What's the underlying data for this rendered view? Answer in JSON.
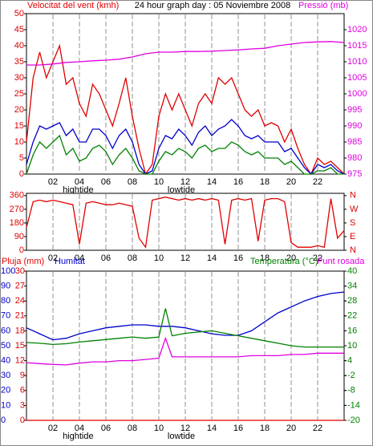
{
  "chart_data": [
    {
      "type": "line",
      "title": "24 hour graph day : 05 Noviembre 2008",
      "x": [
        0,
        0.5,
        1,
        1.5,
        2,
        2.5,
        3,
        3.5,
        4,
        4.5,
        5,
        5.5,
        6,
        6.5,
        7,
        7.5,
        8,
        8.5,
        9,
        9.5,
        10,
        10.5,
        11,
        11.5,
        12,
        12.5,
        13,
        13.5,
        14,
        14.5,
        15,
        15.5,
        16,
        16.5,
        17,
        17.5,
        18,
        18.5,
        19,
        19.5,
        20,
        20.5,
        21,
        21.5,
        22,
        22.5,
        23,
        23.5,
        24
      ],
      "series": [
        {
          "name": "Velocitat del vent (kmh)",
          "color": "#e00000",
          "values": [
            10,
            30,
            38,
            30,
            35,
            40,
            28,
            30,
            22,
            18,
            28,
            25,
            20,
            15,
            22,
            30,
            18,
            8,
            0,
            3,
            18,
            25,
            20,
            25,
            20,
            15,
            22,
            25,
            22,
            30,
            28,
            30,
            25,
            20,
            18,
            20,
            15,
            16,
            15,
            10,
            14,
            8,
            3,
            0,
            5,
            3,
            4,
            2,
            0
          ]
        },
        {
          "color": "#0000cc",
          "values": [
            3,
            10,
            15,
            14,
            15,
            16,
            12,
            14,
            10,
            10,
            14,
            14,
            12,
            8,
            12,
            14,
            10,
            3,
            0,
            1,
            8,
            12,
            11,
            14,
            12,
            9,
            13,
            15,
            12,
            14,
            15,
            17,
            15,
            12,
            11,
            12,
            10,
            10,
            10,
            7,
            8,
            5,
            2,
            0,
            3,
            2,
            3,
            1,
            0
          ]
        },
        {
          "color": "#008000",
          "values": [
            0,
            6,
            10,
            8,
            10,
            12,
            6,
            8,
            4,
            5,
            8,
            9,
            7,
            3,
            6,
            8,
            5,
            1,
            0,
            0,
            4,
            7,
            6,
            8,
            7,
            5,
            8,
            9,
            7,
            8,
            8,
            10,
            9,
            7,
            6,
            7,
            5,
            5,
            5,
            3,
            4,
            2,
            0,
            0,
            1,
            1,
            2,
            0,
            0
          ]
        },
        {
          "name": "Pressió (mb)",
          "color": "#e000e0",
          "axis": "y2",
          "x": [
            0,
            1,
            2,
            3,
            4,
            5,
            6,
            7,
            8,
            9,
            10,
            11,
            12,
            13,
            14,
            15,
            16,
            17,
            18,
            19,
            20,
            21,
            22,
            23,
            24
          ],
          "values": [
            1009,
            1009,
            1009.3,
            1009.8,
            1010,
            1010.3,
            1010.5,
            1010.8,
            1011.5,
            1012.5,
            1013,
            1013,
            1013.2,
            1013.2,
            1013.3,
            1013.5,
            1013.7,
            1014,
            1014.2,
            1015,
            1015.5,
            1016,
            1016.2,
            1016.3,
            1016
          ]
        }
      ],
      "xlim": [
        0,
        24
      ],
      "xticks": [
        {
          "value": 2,
          "label": "02"
        },
        {
          "value": 4,
          "label": "04"
        },
        {
          "value": 6,
          "label": "06"
        },
        {
          "value": 8,
          "label": "08"
        },
        10,
        12,
        14,
        16,
        18,
        20,
        22
      ],
      "ylim": [
        0,
        50
      ],
      "yticks": [
        0,
        5,
        10,
        15,
        20,
        25,
        30,
        35,
        40,
        45,
        50
      ],
      "ycolor": "#e00000",
      "y2lim": [
        975,
        1025
      ],
      "y2ticks": [
        975,
        980,
        985,
        990,
        995,
        1000,
        1005,
        1010,
        1015,
        1020
      ],
      "y2color": "#e000e0",
      "grid": true,
      "annotations": [
        {
          "label": "hightide",
          "x": 3.9
        },
        {
          "label": "lowtide",
          "x": 11.7
        }
      ]
    },
    {
      "type": "line",
      "x": [
        0,
        0.5,
        1,
        1.5,
        2,
        2.5,
        3,
        3.5,
        4,
        4.5,
        5,
        5.5,
        6,
        6.5,
        7,
        7.5,
        8,
        8.5,
        9,
        9.5,
        10,
        10.5,
        11,
        11.5,
        12,
        12.5,
        13,
        13.5,
        14,
        14.5,
        15,
        15.5,
        16,
        16.5,
        17,
        17.5,
        18,
        18.5,
        19,
        19.5,
        20,
        20.5,
        21,
        21.5,
        22,
        22.5,
        23,
        23.5,
        24
      ],
      "series": [
        {
          "color": "#e00000",
          "values": [
            150,
            320,
            330,
            320,
            330,
            320,
            310,
            300,
            40,
            310,
            320,
            310,
            300,
            300,
            310,
            300,
            290,
            80,
            20,
            330,
            340,
            350,
            340,
            330,
            340,
            330,
            340,
            330,
            340,
            330,
            40,
            330,
            340,
            330,
            340,
            60,
            330,
            340,
            340,
            320,
            50,
            20,
            20,
            20,
            30,
            20,
            340,
            80,
            130
          ]
        }
      ],
      "xlim": [
        0,
        24
      ],
      "xticks": [
        {
          "value": 2,
          "label": "02"
        },
        {
          "value": 4,
          "label": "04"
        },
        {
          "value": 6,
          "label": "06"
        },
        {
          "value": 8,
          "label": "08"
        },
        10,
        12,
        14,
        16,
        18,
        20,
        22
      ],
      "ylim": [
        0,
        375
      ],
      "yticks": [
        0,
        90,
        180,
        270,
        360
      ],
      "ycolor": "#e00000",
      "y2lim": [
        0,
        375
      ],
      "y2ticks": [
        {
          "value": 0,
          "label": "N"
        },
        {
          "value": 90,
          "label": "E"
        },
        {
          "value": 180,
          "label": "S"
        },
        {
          "value": 270,
          "label": "W"
        },
        {
          "value": 360,
          "label": "N"
        }
      ],
      "y2color": "#e00000",
      "grid": true
    },
    {
      "type": "line",
      "x": [
        0,
        1,
        2,
        3,
        4,
        5,
        6,
        7,
        8,
        9,
        10,
        10.5,
        11,
        12,
        13,
        14,
        15,
        16,
        17,
        18,
        19,
        20,
        21,
        22,
        23,
        24
      ],
      "series": [
        {
          "name": "Pluja (mm)",
          "color": "#e00000",
          "values": [
            0,
            0,
            0,
            0,
            0,
            0,
            0,
            0,
            0,
            0,
            0,
            0,
            0,
            0,
            0,
            0,
            0,
            0,
            0,
            0,
            0,
            0,
            0,
            0,
            0,
            0
          ]
        },
        {
          "name": "Humitat",
          "color": "#0000cc",
          "axis": "y3",
          "values": [
            62,
            58,
            54,
            55,
            58,
            60,
            62,
            63,
            64,
            64,
            63,
            63,
            63,
            62,
            60,
            58,
            57,
            57,
            60,
            66,
            72,
            76,
            80,
            83,
            85,
            86
          ]
        },
        {
          "name": "Temperatura (°C)",
          "color": "#008000",
          "axis": "y2",
          "values": [
            11.3,
            11,
            10.5,
            10.8,
            11.5,
            12,
            12.5,
            13,
            13.5,
            13,
            13.5,
            25,
            14,
            15,
            15.5,
            16,
            15,
            14,
            13,
            12,
            11,
            10,
            9.5,
            9.5,
            9.5,
            9.5
          ]
        },
        {
          "name": "Punt rosada",
          "color": "#e000e0",
          "axis": "y2",
          "values": [
            3.2,
            2.8,
            2.5,
            2.3,
            3,
            3.5,
            3.5,
            4,
            4,
            4.5,
            5,
            13,
            5.5,
            5.5,
            5.5,
            5.5,
            5.5,
            5.5,
            6,
            6,
            6,
            6.5,
            6.5,
            7,
            7,
            7
          ]
        }
      ],
      "xlim": [
        0,
        24
      ],
      "xticks": [
        {
          "value": 2,
          "label": "02"
        },
        {
          "value": 4,
          "label": "04"
        },
        {
          "value": 6,
          "label": "06"
        },
        {
          "value": 8,
          "label": "08"
        },
        10,
        12,
        14,
        16,
        18,
        20,
        22
      ],
      "ylim": [
        0,
        30
      ],
      "yticks": [
        0,
        3,
        6,
        9,
        12,
        15,
        18,
        21,
        24,
        27,
        30
      ],
      "ycolor": "#e00000",
      "y3lim": [
        0,
        100
      ],
      "y3ticks": [
        0,
        10,
        20,
        30,
        40,
        50,
        60,
        70,
        80,
        90,
        100
      ],
      "y3color": "#0000cc",
      "y2lim": [
        -20,
        40
      ],
      "y2ticks": [
        -20,
        -14,
        -8,
        -2,
        4,
        10,
        16,
        22,
        28,
        34,
        40
      ],
      "y2color": "#008000",
      "grid": true,
      "annotations": [
        {
          "label": "hightide",
          "x": 3.9
        },
        {
          "label": "lowtide",
          "x": 11.7
        }
      ]
    }
  ]
}
